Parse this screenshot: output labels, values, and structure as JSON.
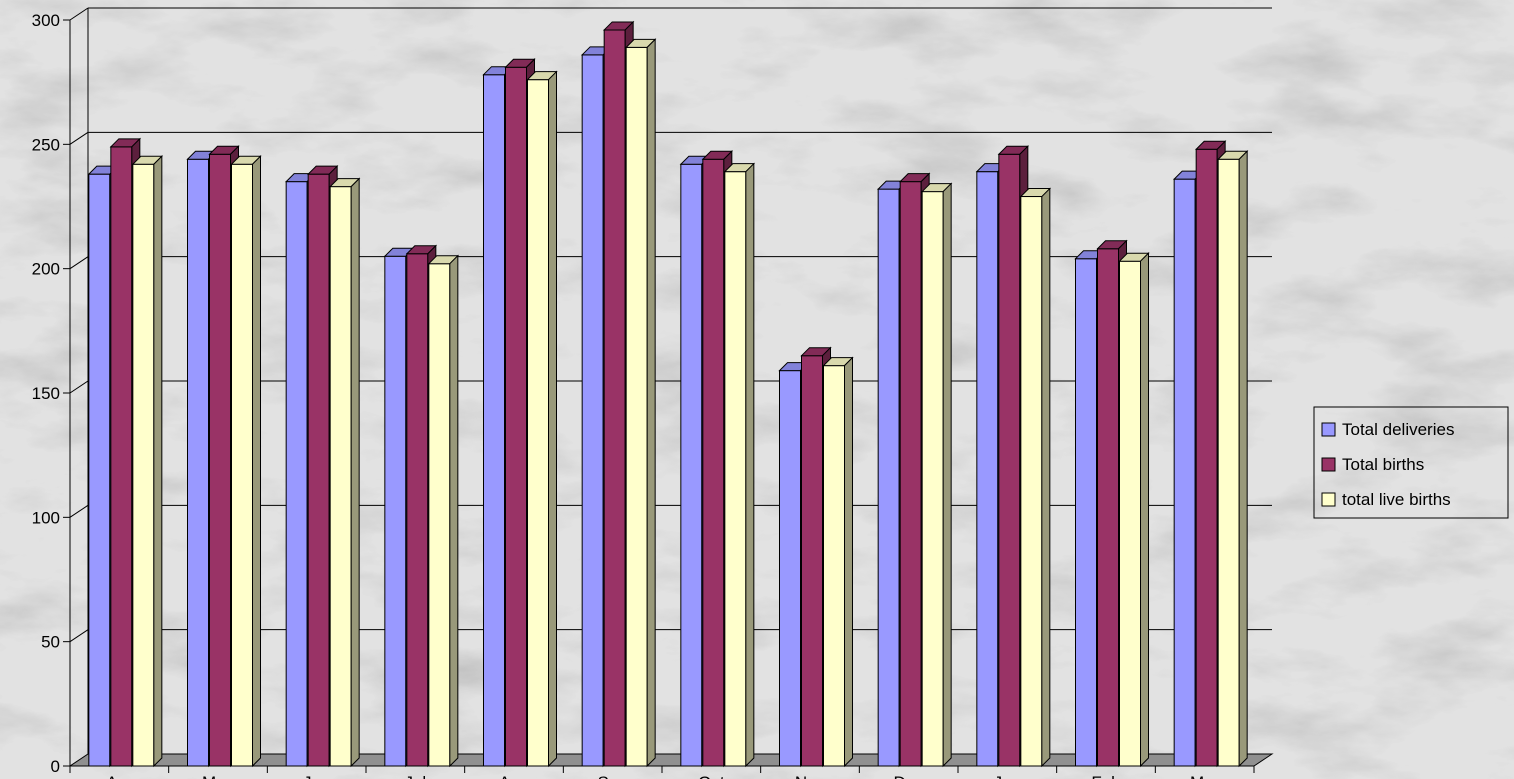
{
  "chart_data": {
    "type": "bar",
    "style": "3d-clustered-column",
    "categories": [
      "Apr",
      "May",
      "Jun",
      "Jul",
      "Aug",
      "Sep",
      "Oct",
      "Nov",
      "Dec",
      "Jan",
      "Feb",
      "Mar"
    ],
    "series": [
      {
        "name": "Total deliveries",
        "color": "#9999ff",
        "values": [
          238,
          244,
          235,
          205,
          278,
          286,
          242,
          159,
          232,
          239,
          204,
          236
        ]
      },
      {
        "name": "Total births",
        "color": "#993366",
        "values": [
          249,
          246,
          238,
          206,
          281,
          296,
          244,
          165,
          235,
          246,
          208,
          248
        ]
      },
      {
        "name": "total live births",
        "color": "#ffffcc",
        "values": [
          242,
          242,
          233,
          202,
          276,
          289,
          239,
          161,
          231,
          229,
          203,
          244
        ]
      }
    ],
    "y_ticks": [
      "0",
      "50",
      "100",
      "150",
      "200",
      "250",
      "300"
    ],
    "ylim": [
      0,
      300
    ],
    "grid": true,
    "legend_position": "right",
    "title": "",
    "xlabel": "",
    "ylabel": ""
  }
}
